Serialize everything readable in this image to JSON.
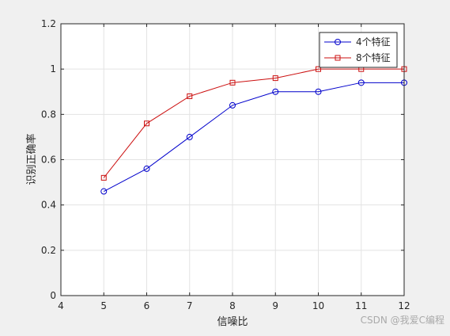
{
  "chart_data": {
    "type": "line",
    "title": "",
    "xlabel": "信噪比",
    "ylabel": "识别正确率",
    "xlim": [
      4,
      12
    ],
    "ylim": [
      0,
      1.2
    ],
    "x_ticks": [
      4,
      5,
      6,
      7,
      8,
      9,
      10,
      11,
      12
    ],
    "x_tick_labels": [
      "4",
      "5",
      "6",
      "7",
      "8",
      "9",
      "10",
      "11",
      "12"
    ],
    "y_ticks": [
      0,
      0.2,
      0.4,
      0.6,
      0.8,
      1,
      1.2
    ],
    "y_tick_labels": [
      "0",
      "0.2",
      "0.4",
      "0.6",
      "0.8",
      "1",
      "1.2"
    ],
    "grid": true,
    "legend_position": "top-right",
    "x": [
      5,
      6,
      7,
      8,
      9,
      10,
      11,
      12
    ],
    "series": [
      {
        "name": "4个特征",
        "values": [
          0.46,
          0.56,
          0.7,
          0.84,
          0.9,
          0.9,
          0.94,
          0.94
        ],
        "color": "#0000cc",
        "marker": "circle"
      },
      {
        "name": "8个特征",
        "values": [
          0.52,
          0.76,
          0.88,
          0.94,
          0.96,
          1.0,
          1.0,
          1.0
        ],
        "color": "#cc1111",
        "marker": "square"
      }
    ]
  },
  "watermark": "CSDN @我爱C编程"
}
